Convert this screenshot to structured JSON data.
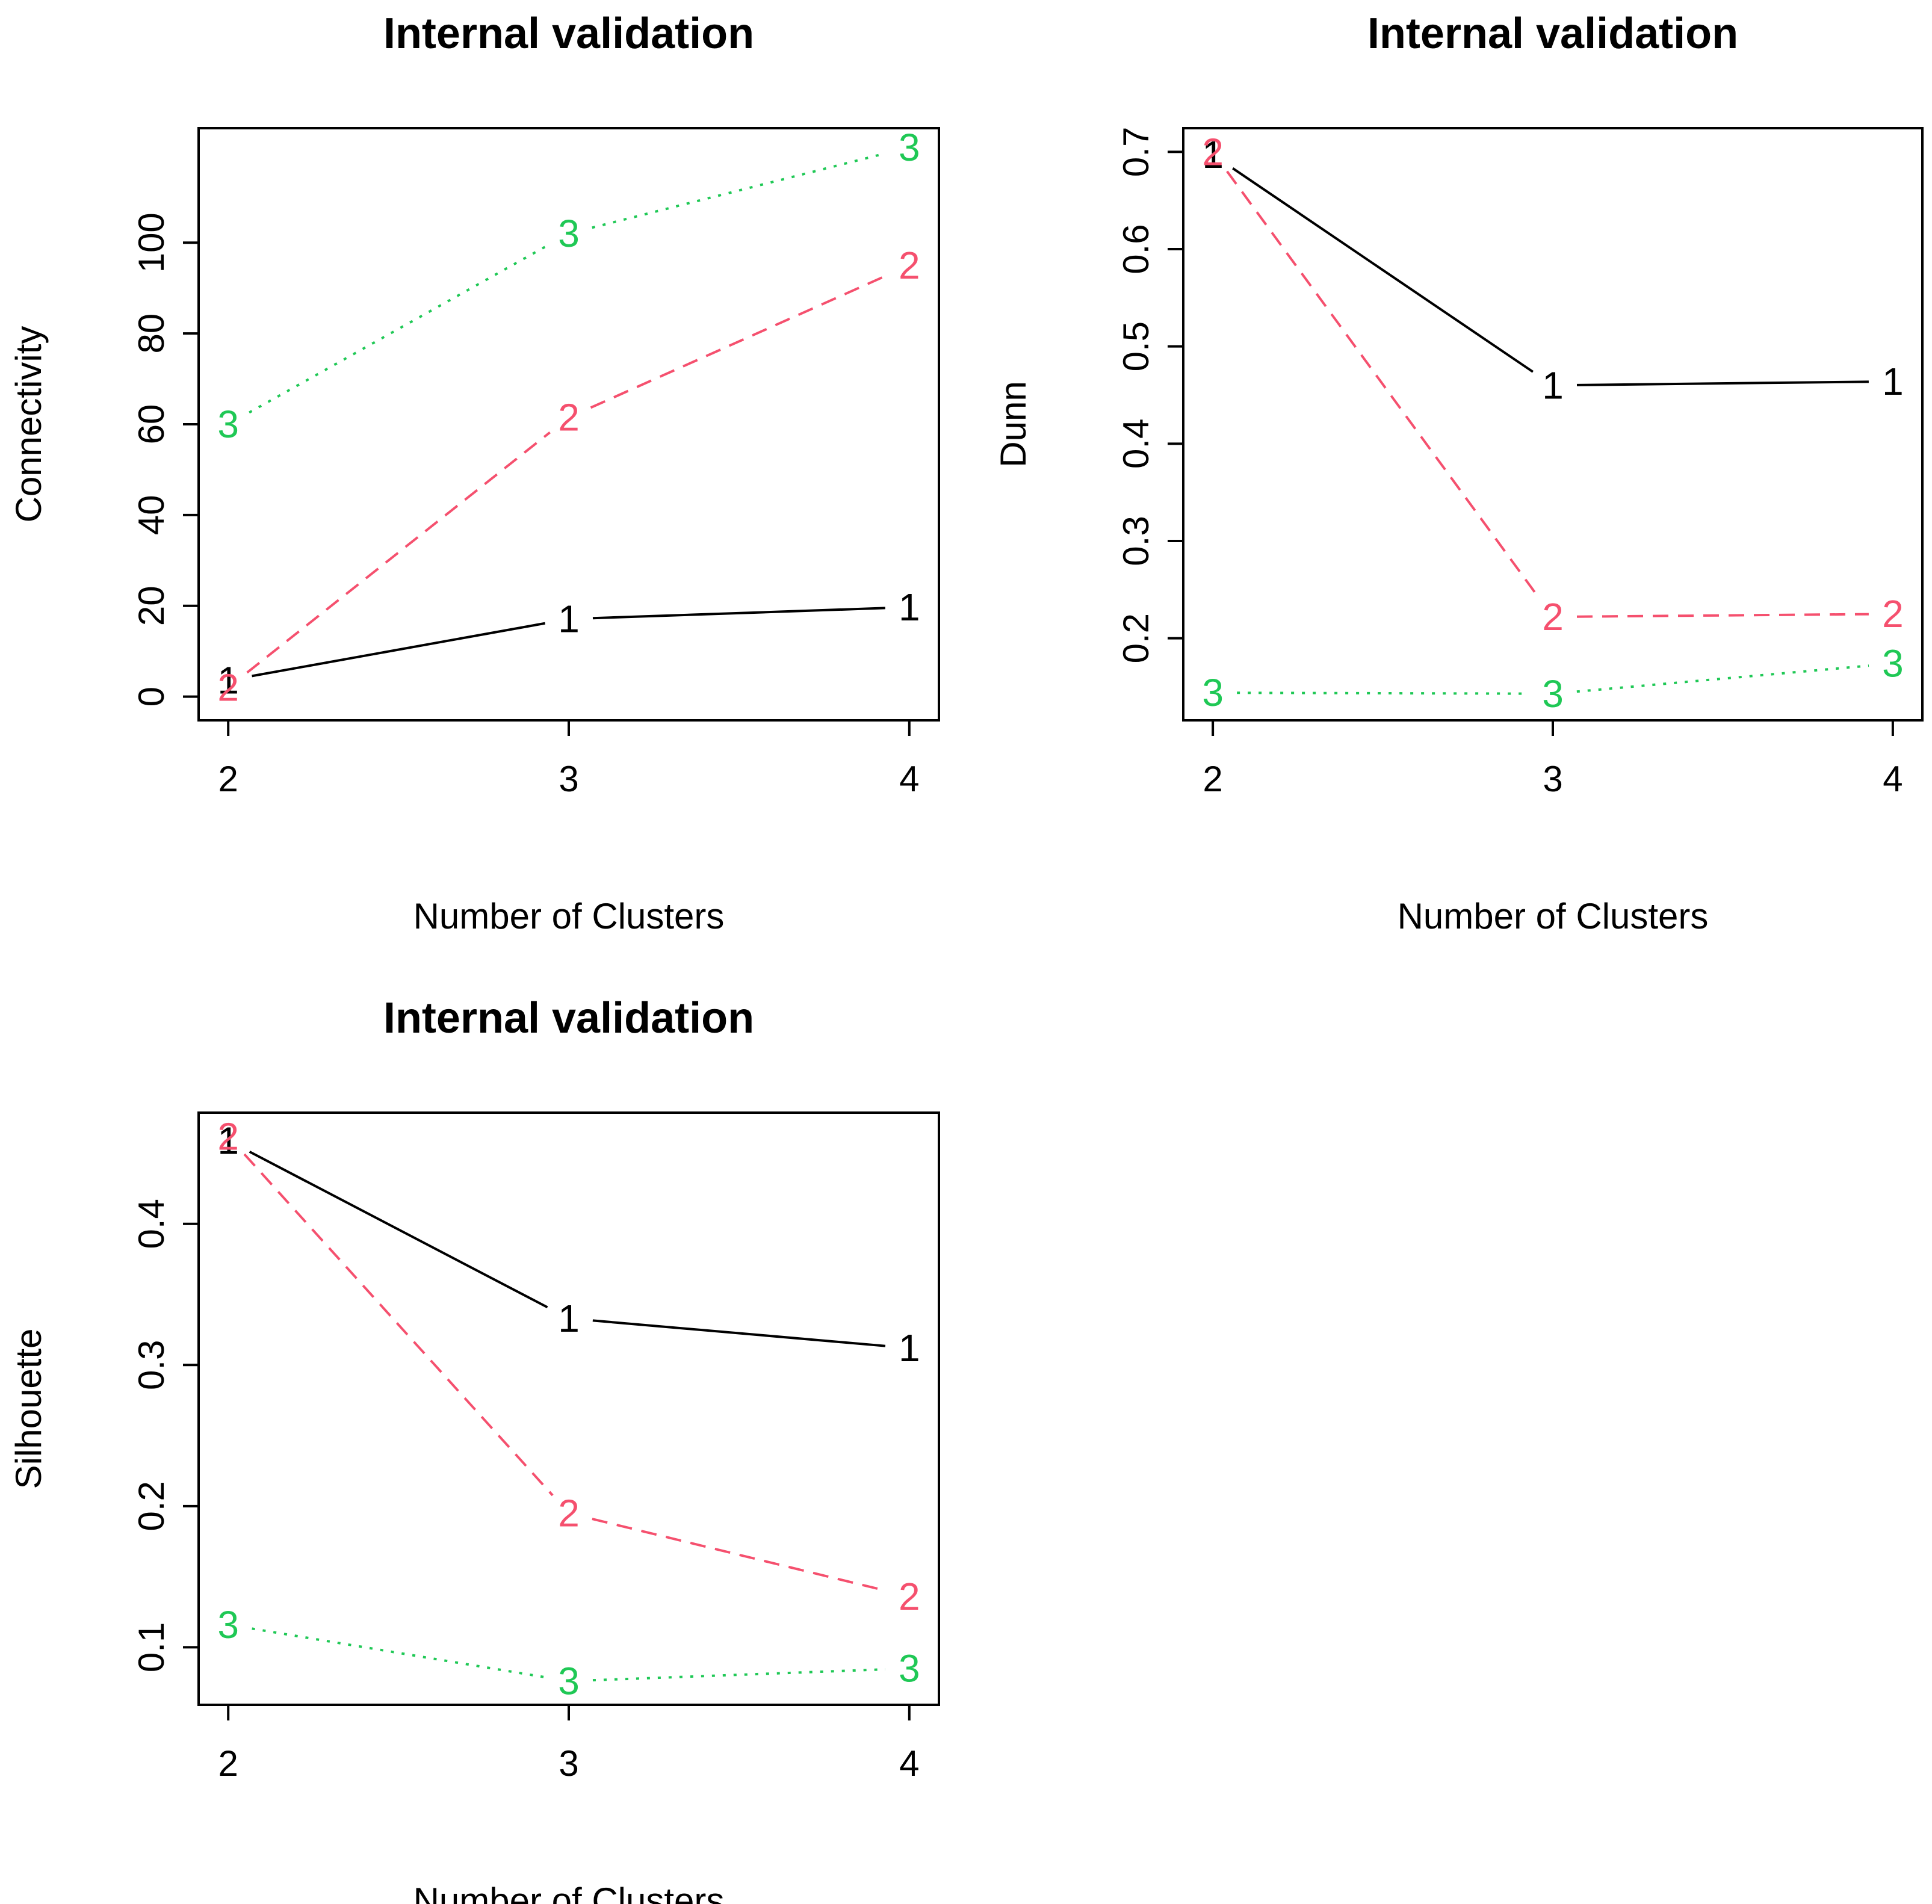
{
  "colors": {
    "method_1": "#000000",
    "method_2": "#F5506E",
    "method_3": "#1FC855",
    "axis": "#000000"
  },
  "chart_data": [
    {
      "type": "line",
      "title": "Internal validation",
      "xlabel": "Number of Clusters",
      "ylabel": "Connectivity",
      "x": [
        2,
        3,
        4
      ],
      "x_tick_labels": [
        "2",
        "3",
        "4"
      ],
      "xlim": [
        2,
        4
      ],
      "ylim": [
        0,
        120
      ],
      "y_ticks": [
        0,
        20,
        40,
        60,
        80,
        100
      ],
      "y_tick_labels": [
        "0",
        "20",
        "40",
        "60",
        "80",
        "100"
      ],
      "series": [
        {
          "name": "1",
          "marker": "1",
          "line_style": "solid",
          "color": "#000000",
          "values": [
            3.6,
            17.1,
            19.7
          ]
        },
        {
          "name": "2",
          "marker": "2",
          "line_style": "dashed",
          "color": "#F5506E",
          "values": [
            2.0,
            61.5,
            95.0
          ]
        },
        {
          "name": "3",
          "marker": "3",
          "line_style": "dotted",
          "color": "#1FC855",
          "values": [
            60.0,
            102.0,
            121.0
          ]
        }
      ]
    },
    {
      "type": "line",
      "title": "Internal validation",
      "xlabel": "Number of Clusters",
      "ylabel": "Dunn",
      "x": [
        2,
        3,
        4
      ],
      "x_tick_labels": [
        "2",
        "3",
        "4"
      ],
      "xlim": [
        2,
        4
      ],
      "ylim": [
        0.14,
        0.7
      ],
      "y_ticks": [
        0.2,
        0.3,
        0.4,
        0.5,
        0.6,
        0.7
      ],
      "y_tick_labels": [
        "0.2",
        "0.3",
        "0.4",
        "0.5",
        "0.6",
        "0.7"
      ],
      "series": [
        {
          "name": "1",
          "marker": "1",
          "line_style": "solid",
          "color": "#000000",
          "values": [
            0.697,
            0.46,
            0.464
          ]
        },
        {
          "name": "2",
          "marker": "2",
          "line_style": "dashed",
          "color": "#F5506E",
          "values": [
            0.7,
            0.222,
            0.225
          ]
        },
        {
          "name": "3",
          "marker": "3",
          "line_style": "dotted",
          "color": "#1FC855",
          "values": [
            0.144,
            0.143,
            0.174
          ]
        }
      ]
    },
    {
      "type": "line",
      "title": "Internal validation",
      "xlabel": "Number of Clusters",
      "ylabel": "Silhouette",
      "x": [
        2,
        3,
        4
      ],
      "x_tick_labels": [
        "2",
        "3",
        "4"
      ],
      "xlim": [
        2,
        4
      ],
      "ylim": [
        0.076,
        0.462
      ],
      "y_ticks": [
        0.1,
        0.2,
        0.3,
        0.4
      ],
      "y_tick_labels": [
        "0.1",
        "0.2",
        "0.3",
        "0.4"
      ],
      "series": [
        {
          "name": "1",
          "marker": "1",
          "line_style": "solid",
          "color": "#000000",
          "values": [
            0.459,
            0.333,
            0.312
          ]
        },
        {
          "name": "2",
          "marker": "2",
          "line_style": "dashed",
          "color": "#F5506E",
          "values": [
            0.462,
            0.195,
            0.136
          ]
        },
        {
          "name": "3",
          "marker": "3",
          "line_style": "dotted",
          "color": "#1FC855",
          "values": [
            0.116,
            0.076,
            0.085
          ]
        }
      ]
    }
  ]
}
